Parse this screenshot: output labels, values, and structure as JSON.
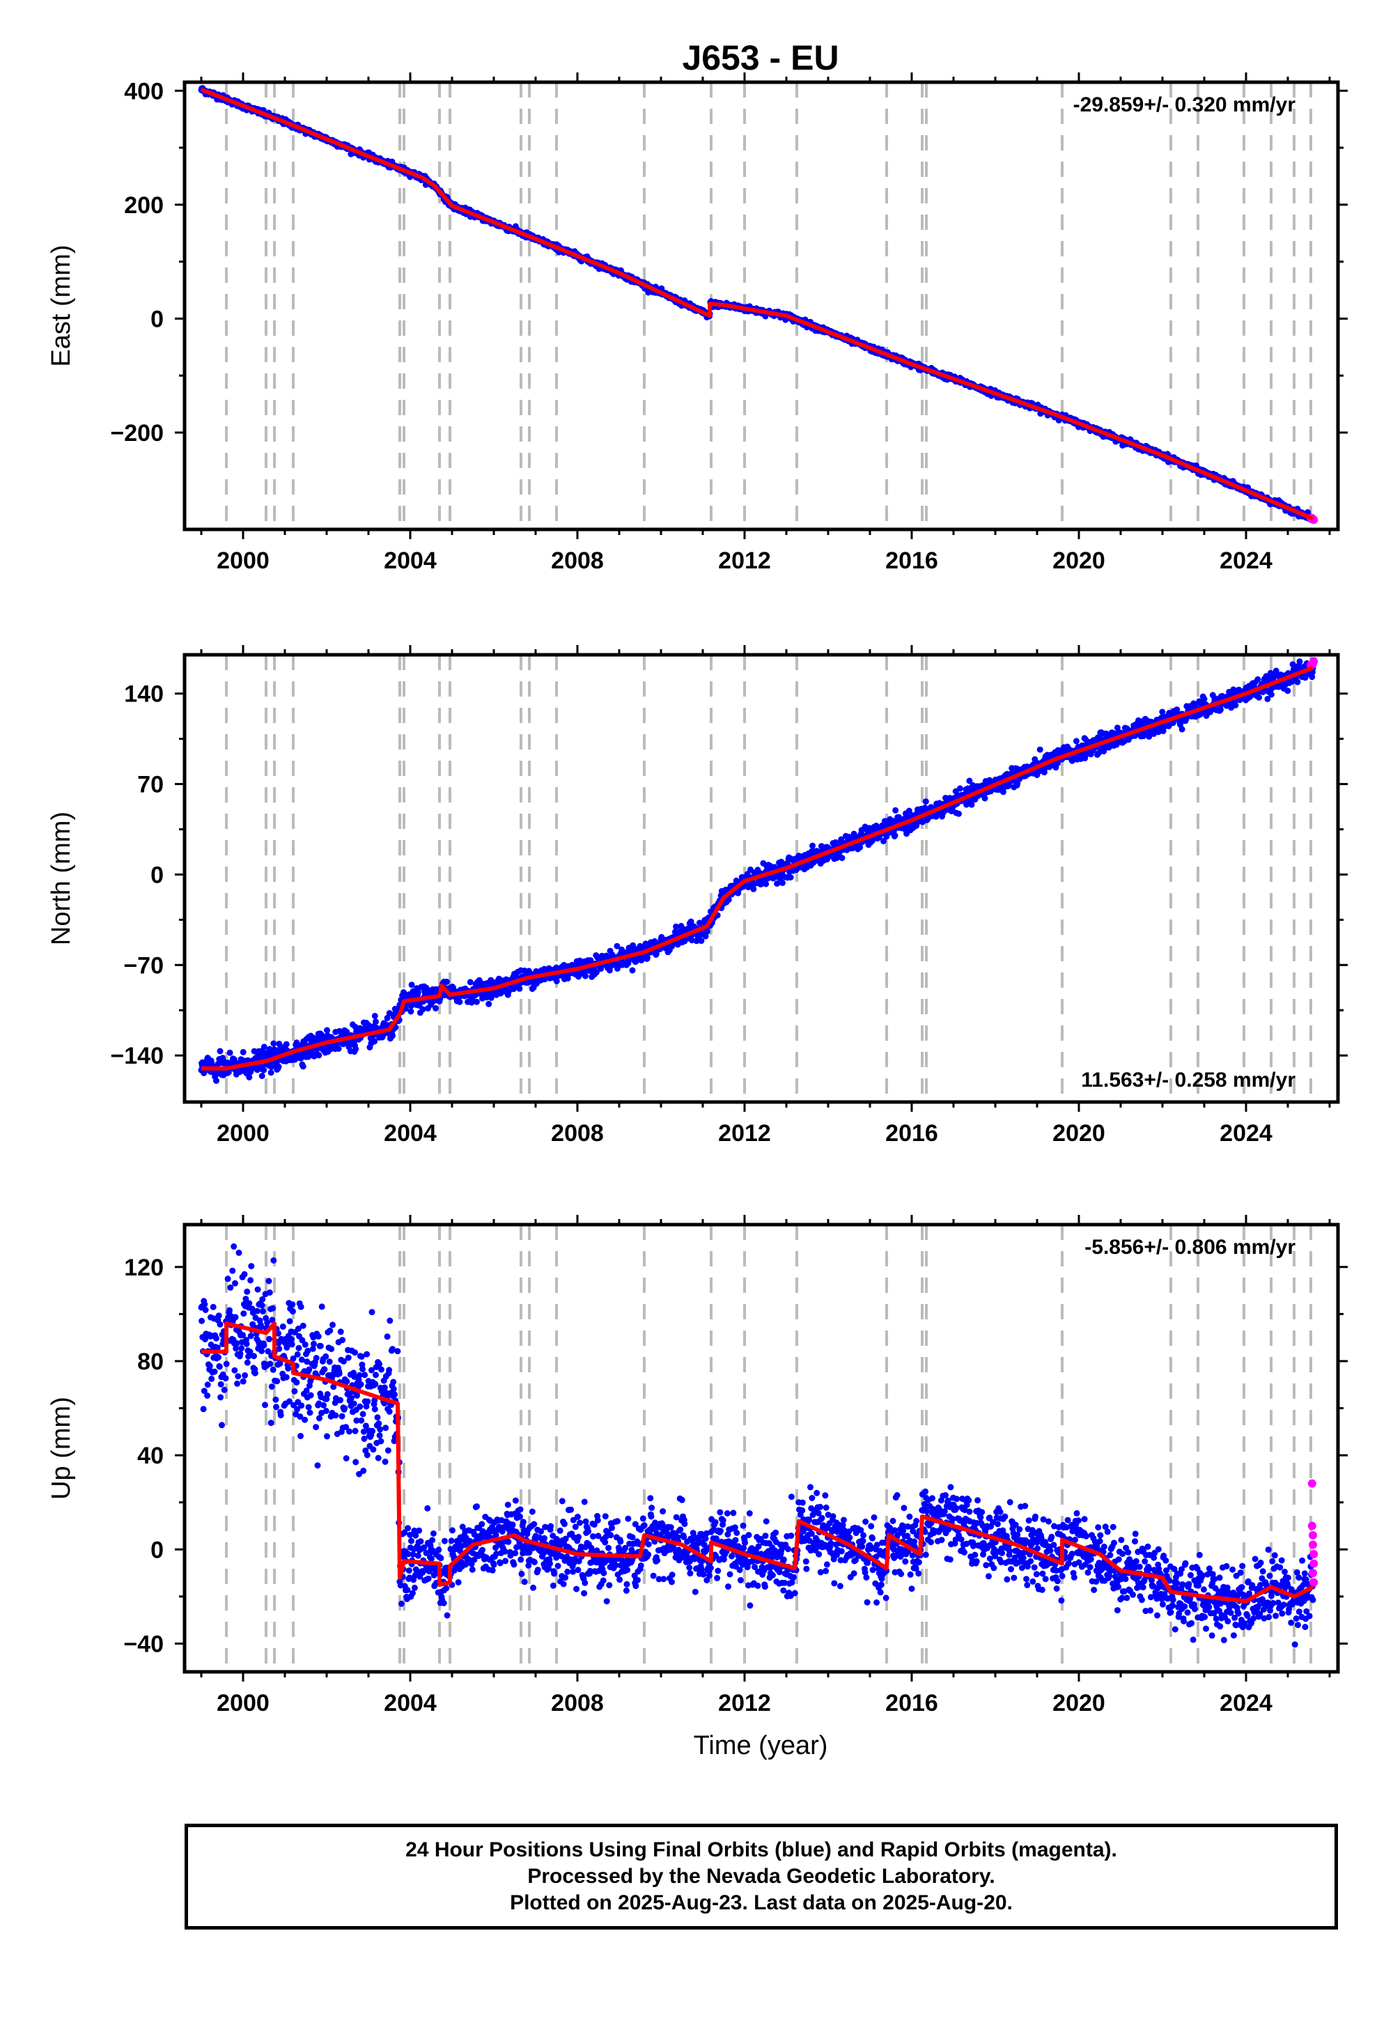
{
  "title": "J653 - EU",
  "xlabel": "Time (year)",
  "footer": {
    "line1": "24 Hour Positions Using Final Orbits (blue) and Rapid Orbits (magenta).",
    "line2": "Processed by the Nevada Geodetic Laboratory.",
    "line3": "Plotted on 2025-Aug-23. Last data on 2025-Aug-20."
  },
  "colors": {
    "final": "#0000ff",
    "rapid": "#ff00ff",
    "model": "#ff0000",
    "event_line": "#bbbbbb"
  },
  "event_lines_years": [
    1999.6,
    2000.55,
    2000.75,
    2001.2,
    2003.75,
    2003.85,
    2004.7,
    2004.95,
    2006.65,
    2006.85,
    2007.5,
    2009.6,
    2011.2,
    2012.0,
    2013.25,
    2015.4,
    2016.25,
    2016.35,
    2019.6,
    2022.2,
    2022.85,
    2023.95,
    2024.6,
    2025.15,
    2025.55
  ],
  "chart_data": [
    {
      "type": "scatter",
      "component": "east",
      "ylabel": "East (mm)",
      "rate_text": "-29.859+/- 0.320 mm/yr",
      "xlim": [
        1998.6,
        2026.2
      ],
      "ylim": [
        -370,
        415
      ],
      "xticks": [
        2000,
        2004,
        2008,
        2012,
        2016,
        2020,
        2024
      ],
      "yticks": [
        -200,
        0,
        200,
        400
      ],
      "ytick_labels": [
        "−200",
        "0",
        "200",
        "400"
      ],
      "model": [
        [
          1999.0,
          402
        ],
        [
          2001.0,
          345
        ],
        [
          2003.0,
          285
        ],
        [
          2004.3,
          247
        ],
        [
          2004.6,
          232
        ],
        [
          2005.0,
          198
        ],
        [
          2007.0,
          140
        ],
        [
          2009.0,
          80
        ],
        [
          2011.17,
          5
        ],
        [
          2011.17,
          26
        ],
        [
          2011.5,
          24
        ],
        [
          2013.0,
          5
        ],
        [
          2016.0,
          -80
        ],
        [
          2019.5,
          -170
        ],
        [
          2022.0,
          -240
        ],
        [
          2025.6,
          -351
        ]
      ],
      "final_noise_mm": 2.5,
      "rapid_points": [
        [
          2025.55,
          -350
        ],
        [
          2025.6,
          -352
        ],
        [
          2025.62,
          -353
        ]
      ]
    },
    {
      "type": "scatter",
      "component": "north",
      "ylabel": "North (mm)",
      "rate_text": "11.563+/- 0.258 mm/yr",
      "xlim": [
        1998.6,
        2026.2
      ],
      "ylim": [
        -176,
        170
      ],
      "xticks": [
        2000,
        2004,
        2008,
        2012,
        2016,
        2020,
        2024
      ],
      "yticks": [
        -140,
        -70,
        0,
        70,
        140
      ],
      "ytick_labels": [
        "−140",
        "−70",
        "0",
        "70",
        "140"
      ],
      "model": [
        [
          1999.0,
          -150
        ],
        [
          1999.6,
          -150
        ],
        [
          2000.6,
          -144
        ],
        [
          2001.2,
          -137
        ],
        [
          2002.0,
          -130
        ],
        [
          2003.5,
          -120
        ],
        [
          2003.75,
          -108
        ],
        [
          2003.85,
          -98
        ],
        [
          2004.7,
          -94
        ],
        [
          2004.75,
          -86
        ],
        [
          2004.95,
          -93
        ],
        [
          2006.0,
          -88
        ],
        [
          2006.8,
          -80
        ],
        [
          2008.0,
          -73
        ],
        [
          2009.6,
          -60
        ],
        [
          2011.1,
          -40
        ],
        [
          2011.5,
          -18
        ],
        [
          2012.0,
          -5
        ],
        [
          2013.0,
          5
        ],
        [
          2016.0,
          42
        ],
        [
          2019.5,
          90
        ],
        [
          2022.0,
          118
        ],
        [
          2024.0,
          140
        ],
        [
          2025.6,
          160
        ]
      ],
      "final_noise_mm": 3.5,
      "rapid_points": [
        [
          2025.55,
          162
        ],
        [
          2025.6,
          163
        ],
        [
          2025.62,
          165
        ]
      ]
    },
    {
      "type": "scatter",
      "component": "up",
      "ylabel": "Up (mm)",
      "rate_text": "-5.856+/- 0.806 mm/yr",
      "xlim": [
        1998.6,
        2026.2
      ],
      "ylim": [
        -52,
        138
      ],
      "xticks": [
        2000,
        2004,
        2008,
        2012,
        2016,
        2020,
        2024
      ],
      "yticks": [
        -40,
        0,
        40,
        80,
        120
      ],
      "ytick_labels": [
        "−40",
        "0",
        "40",
        "80",
        "120"
      ],
      "model": [
        [
          1999.0,
          84
        ],
        [
          1999.6,
          84
        ],
        [
          1999.6,
          96
        ],
        [
          2000.55,
          92
        ],
        [
          2000.75,
          96
        ],
        [
          2000.75,
          82
        ],
        [
          2001.2,
          79
        ],
        [
          2001.2,
          75
        ],
        [
          2002.0,
          72
        ],
        [
          2003.0,
          66
        ],
        [
          2003.7,
          62
        ],
        [
          2003.75,
          -12
        ],
        [
          2003.85,
          -5
        ],
        [
          2004.7,
          -6
        ],
        [
          2004.7,
          -15
        ],
        [
          2004.95,
          -14
        ],
        [
          2004.95,
          -7
        ],
        [
          2005.5,
          2
        ],
        [
          2006.5,
          6
        ],
        [
          2006.7,
          4
        ],
        [
          2008.0,
          -2
        ],
        [
          2009.5,
          -3
        ],
        [
          2009.6,
          6
        ],
        [
          2010.5,
          2
        ],
        [
          2011.2,
          -5
        ],
        [
          2011.2,
          3
        ],
        [
          2012.0,
          -2
        ],
        [
          2013.2,
          -8
        ],
        [
          2013.3,
          12
        ],
        [
          2014.5,
          2
        ],
        [
          2015.4,
          -8
        ],
        [
          2015.45,
          6
        ],
        [
          2016.2,
          -2
        ],
        [
          2016.25,
          14
        ],
        [
          2017.0,
          10
        ],
        [
          2018.5,
          2
        ],
        [
          2019.6,
          -6
        ],
        [
          2019.6,
          4
        ],
        [
          2020.5,
          -2
        ],
        [
          2021.0,
          -9
        ],
        [
          2022.0,
          -12
        ],
        [
          2022.2,
          -18
        ],
        [
          2023.0,
          -20
        ],
        [
          2024.0,
          -22
        ],
        [
          2024.6,
          -16
        ],
        [
          2025.15,
          -20
        ],
        [
          2025.6,
          -16
        ]
      ],
      "final_noise_mm": 7,
      "rapid_points": [
        [
          2025.58,
          28
        ],
        [
          2025.58,
          10
        ],
        [
          2025.6,
          6
        ],
        [
          2025.6,
          2
        ],
        [
          2025.62,
          -2
        ],
        [
          2025.62,
          -6
        ],
        [
          2025.6,
          -10
        ],
        [
          2025.62,
          -14
        ]
      ]
    }
  ]
}
